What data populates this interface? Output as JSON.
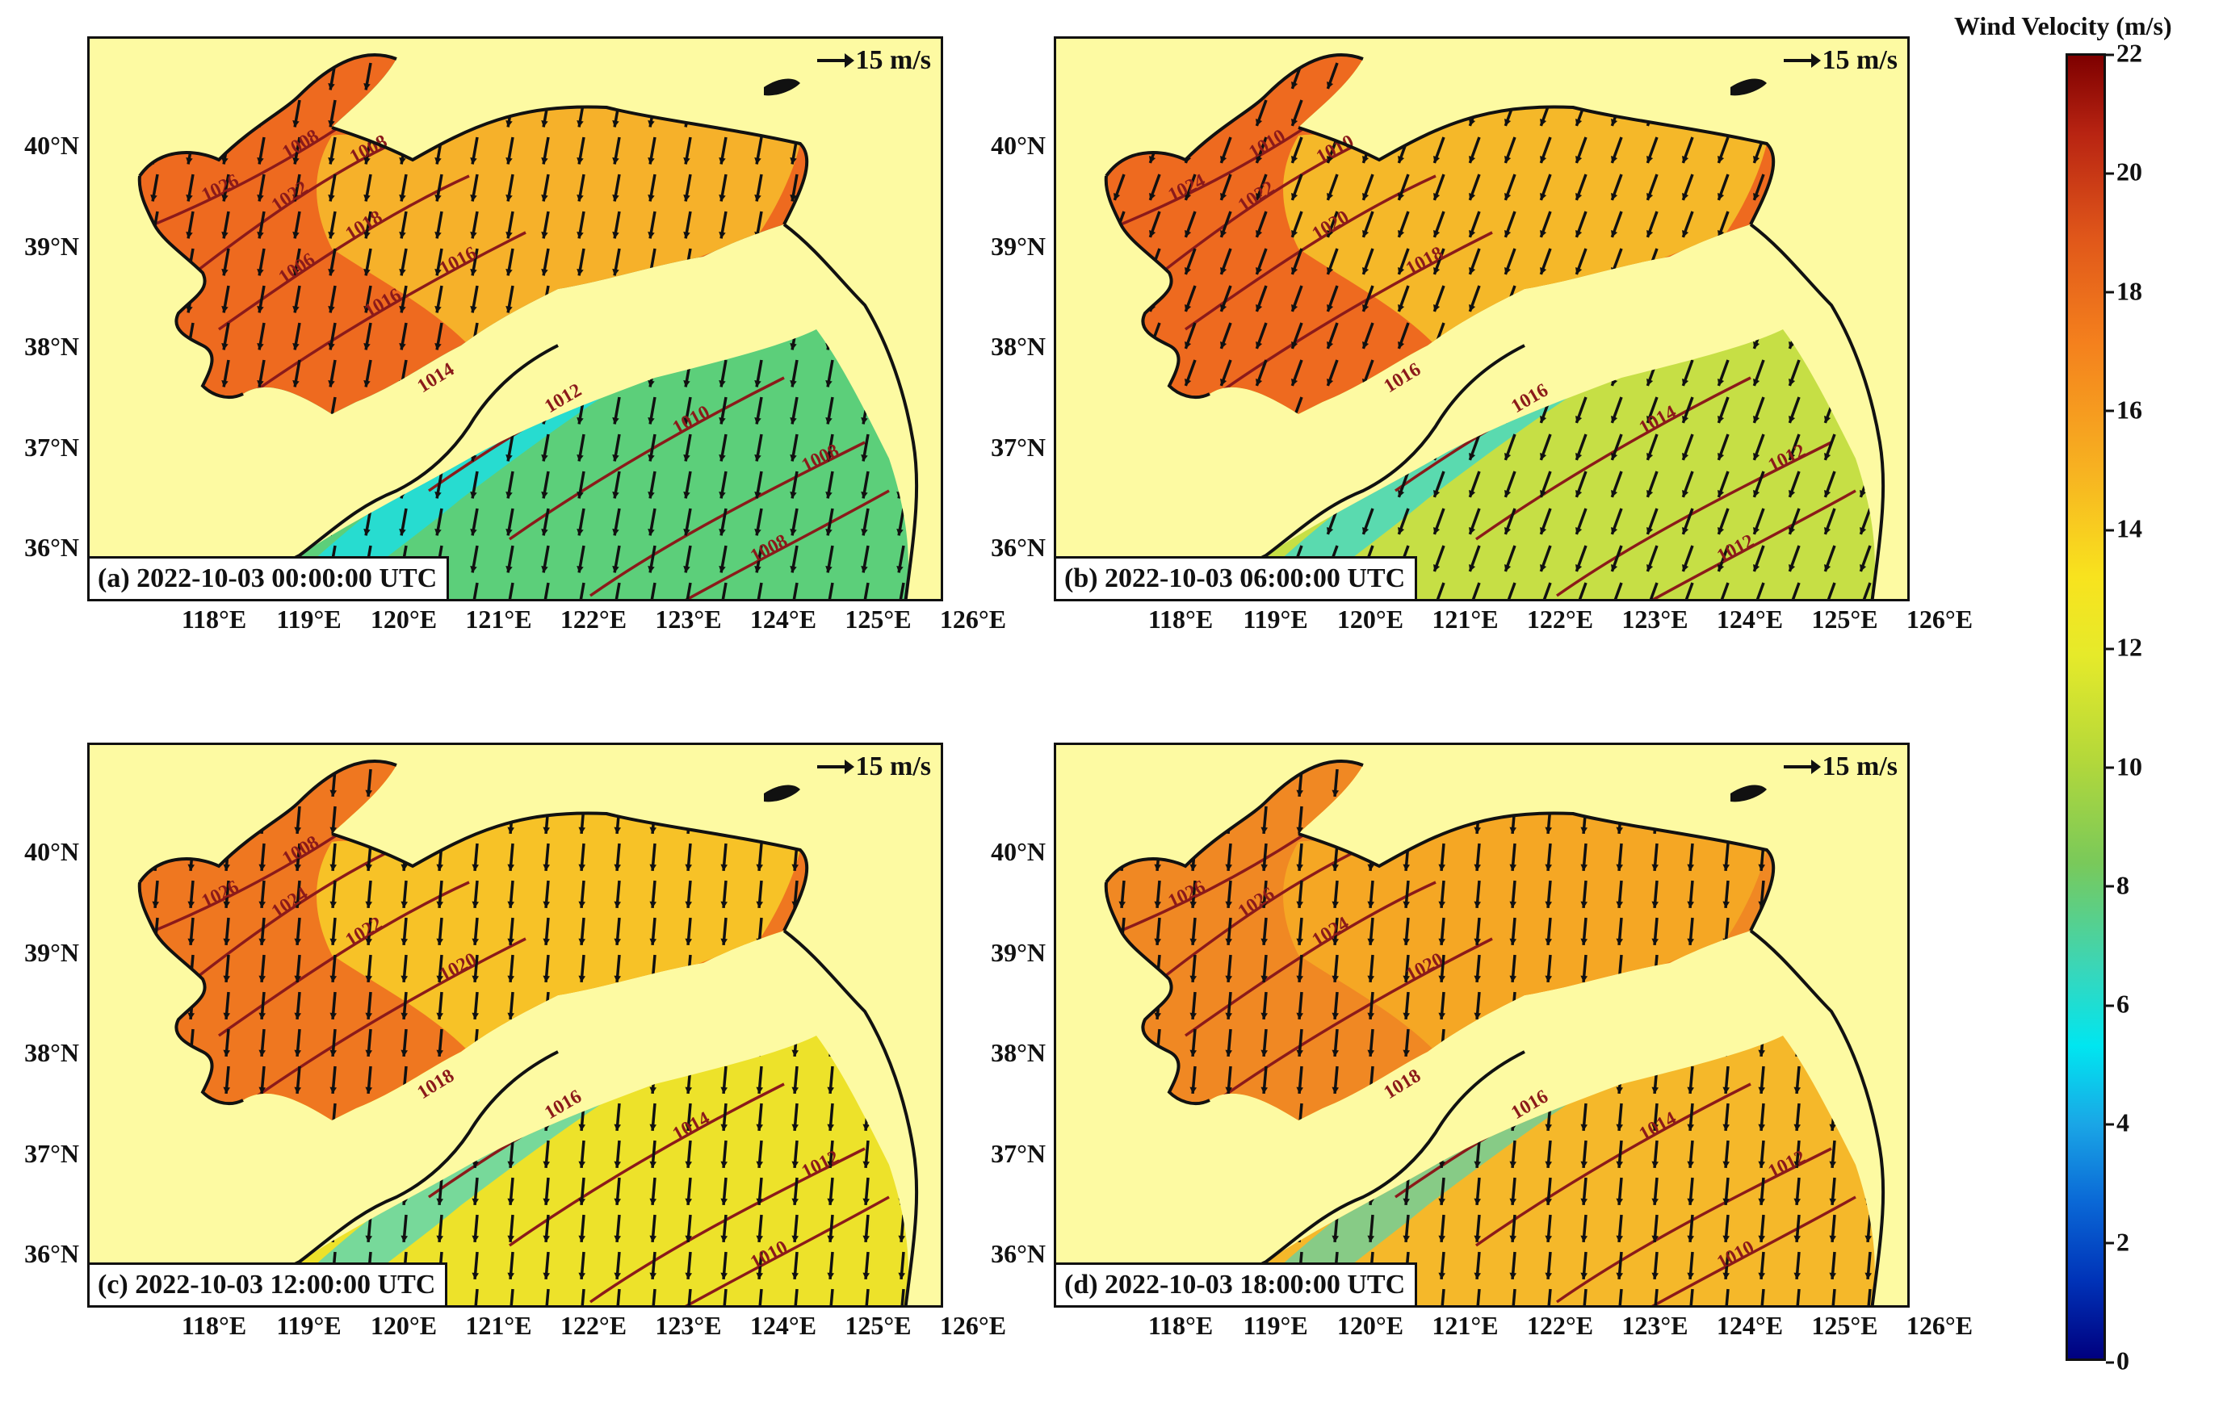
{
  "colorbar": {
    "title": "Wind Velocity (m/s)",
    "ticks": [
      "0",
      "2",
      "4",
      "6",
      "8",
      "10",
      "12",
      "14",
      "16",
      "18",
      "20",
      "22"
    ],
    "min": 0,
    "max": 22
  },
  "lat_ticks": [
    "40°N",
    "39°N",
    "38°N",
    "37°N",
    "36°N"
  ],
  "lon_ticks": [
    "118°E",
    "119°E",
    "120°E",
    "121°E",
    "122°E",
    "123°E",
    "124°E",
    "125°E",
    "126°E"
  ],
  "scale_label": "15 m/s",
  "colors": {
    "land": "#fdfaa2",
    "isobar": "#8b1a1a",
    "coast": "#111111",
    "arrow": "#111111"
  },
  "panels": [
    {
      "label": "(a) 2022-10-03 00:00:00 UTC",
      "bohai_color": "#ee6a1f",
      "north_yellow_color": "#f6b12a",
      "south_yellow_color": "#5ccf7a",
      "channel_color": "#16e0ee",
      "isobar_labels": [
        "1026",
        "1022",
        "1018",
        "1016",
        "1014",
        "1012",
        "1010",
        "1008",
        "1008",
        "1008",
        "1008",
        "1006",
        "1016"
      ],
      "arrow_angle_deg": 100
    },
    {
      "label": "(b) 2022-10-03 06:00:00 UTC",
      "bohai_color": "#ee6a1f",
      "north_yellow_color": "#f5b829",
      "south_yellow_color": "#c6df45",
      "channel_color": "#35d8d3",
      "isobar_labels": [
        "1024",
        "1022",
        "1020",
        "1018",
        "1016",
        "1016",
        "1014",
        "1012",
        "1012",
        "1010",
        "1010"
      ],
      "arrow_angle_deg": 110
    },
    {
      "label": "(c) 2022-10-03 12:00:00 UTC",
      "bohai_color": "#ef7720",
      "north_yellow_color": "#f7c227",
      "south_yellow_color": "#ede22a",
      "channel_color": "#4fd5c0",
      "isobar_labels": [
        "1026",
        "1024",
        "1022",
        "1020",
        "1018",
        "1016",
        "1014",
        "1012",
        "1010",
        "1008"
      ],
      "arrow_angle_deg": 95
    },
    {
      "label": "(d) 2022-10-03 18:00:00 UTC",
      "bohai_color": "#f08823",
      "north_yellow_color": "#f5a724",
      "south_yellow_color": "#f5b82a",
      "channel_color": "#62d2a6",
      "isobar_labels": [
        "1026",
        "1026",
        "1024",
        "1020",
        "1018",
        "1016",
        "1014",
        "1012",
        "1010"
      ],
      "arrow_angle_deg": 95
    }
  ]
}
